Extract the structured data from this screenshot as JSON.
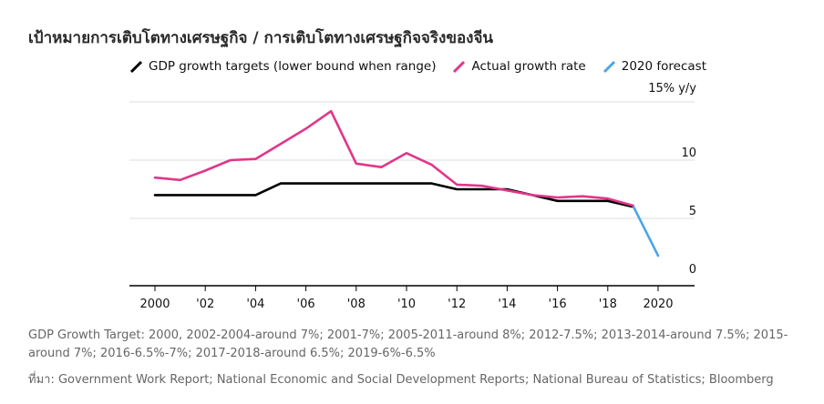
{
  "chart_data": {
    "type": "line",
    "title": "เป้าหมายการเติบโตทางเศรษฐกิจ / การเติบโตทางเศรษฐกิจจริงของจีน",
    "ylabel_top": "15% y/y",
    "ylim": [
      0,
      15
    ],
    "xlim": [
      2000,
      2021
    ],
    "y_ticks": [
      0,
      5,
      10
    ],
    "y_tick_labels": [
      "0",
      "5",
      "10"
    ],
    "x_ticks": [
      2000,
      2002,
      2004,
      2006,
      2008,
      2010,
      2012,
      2014,
      2016,
      2018,
      2020
    ],
    "x_tick_labels": [
      "2000",
      "'02",
      "'04",
      "'06",
      "'08",
      "'10",
      "'12",
      "'14",
      "'16",
      "'18",
      "2020"
    ],
    "series": [
      {
        "name": "GDP growth targets (lower bound when range)",
        "color": "#000000",
        "x": [
          2000,
          2001,
          2002,
          2003,
          2004,
          2005,
          2006,
          2007,
          2008,
          2009,
          2010,
          2011,
          2012,
          2013,
          2014,
          2015,
          2016,
          2017,
          2018,
          2019
        ],
        "values": [
          7,
          7,
          7,
          7,
          7,
          8,
          8,
          8,
          8,
          8,
          8,
          8,
          7.5,
          7.5,
          7.5,
          7,
          6.5,
          6.5,
          6.5,
          6
        ]
      },
      {
        "name": "Actual growth rate",
        "color": "#e0378a",
        "x": [
          2000,
          2001,
          2002,
          2003,
          2004,
          2005,
          2006,
          2007,
          2008,
          2009,
          2010,
          2011,
          2012,
          2013,
          2014,
          2015,
          2016,
          2017,
          2018,
          2019
        ],
        "values": [
          8.5,
          8.3,
          9.1,
          10.0,
          10.1,
          11.4,
          12.7,
          14.2,
          9.7,
          9.4,
          10.6,
          9.6,
          7.9,
          7.8,
          7.4,
          7.0,
          6.8,
          6.9,
          6.7,
          6.1
        ]
      },
      {
        "name": "2020 forecast",
        "color": "#4aa6e8",
        "x": [
          2019,
          2020
        ],
        "values": [
          6.1,
          1.8
        ]
      }
    ]
  },
  "footer": {
    "note": "GDP Growth Target: 2000, 2002-2004-around 7%; 2001-7%; 2005-2011-around 8%; 2012-7.5%; 2013-2014-around 7.5%; 2015-around 7%; 2016-6.5%-7%; 2017-2018-around 6.5%; 2019-6%-6.5%",
    "source": "ที่มา: Government Work Report; National Economic and Social Development Reports; National Bureau of Statistics; Bloomberg"
  }
}
